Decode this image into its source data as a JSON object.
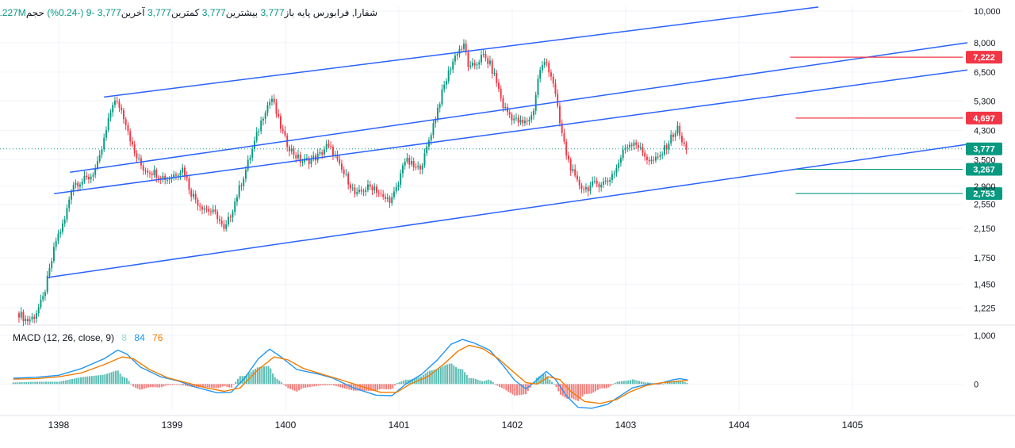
{
  "header": {
    "symbol": "شفارا, فرابورس پایه",
    "open_label": "باز",
    "open_value": "3,777",
    "high_label": "بیشترین",
    "high_value": "3,777",
    "low_label": "کمترین",
    "low_value": "3,777",
    "close_label": "آخرین",
    "close_value": "3,777",
    "change": "-9",
    "change_pct": "(-0.24%)",
    "volume_label": "حجم",
    "volume_value": "1.227M"
  },
  "macd_legend": {
    "title": "MACD (12, 26, close, 9)",
    "hist_value": "8",
    "macd_value": "84",
    "signal_value": "76"
  },
  "colors": {
    "up": "#089981",
    "down": "#f23645",
    "channel": "#2962ff",
    "macd": "#2196f3",
    "signal": "#f57c00",
    "hist_up": "#26a69a",
    "hist_down": "#ef5350"
  },
  "chart_data": [
    {
      "type": "candlestick",
      "scale": "log",
      "x_ticks": [
        "1398",
        "1399",
        "1400",
        "1401",
        "1402",
        "1403",
        "1404",
        "1405"
      ],
      "x_range": [
        1397.6,
        1405.8
      ],
      "y_ticks": [
        10000,
        8000,
        6500,
        5300,
        4300,
        3500,
        2900,
        2550,
        2150,
        1750,
        1450,
        1225
      ],
      "y_tick_labels": [
        "10,000",
        "8,000",
        "6,500",
        "5,300",
        "4,300",
        "3,500",
        "2,900",
        "2,550",
        "2,150",
        "1,750",
        "1,450",
        "1,225"
      ],
      "ylim": [
        1110,
        10350
      ],
      "price_path": [
        [
          1397.65,
          1180
        ],
        [
          1397.72,
          1120
        ],
        [
          1397.78,
          1150
        ],
        [
          1397.86,
          1300
        ],
        [
          1397.92,
          1600
        ],
        [
          1397.98,
          2000
        ],
        [
          1398.05,
          2250
        ],
        [
          1398.12,
          2950
        ],
        [
          1398.2,
          3000
        ],
        [
          1398.28,
          3100
        ],
        [
          1398.35,
          3400
        ],
        [
          1398.42,
          4300
        ],
        [
          1398.48,
          5300
        ],
        [
          1398.54,
          5100
        ],
        [
          1398.6,
          4500
        ],
        [
          1398.66,
          3700
        ],
        [
          1398.74,
          3300
        ],
        [
          1398.84,
          3200
        ],
        [
          1398.96,
          3050
        ],
        [
          1399.04,
          3200
        ],
        [
          1399.1,
          3300
        ],
        [
          1399.16,
          2800
        ],
        [
          1399.24,
          2550
        ],
        [
          1399.32,
          2450
        ],
        [
          1399.4,
          2350
        ],
        [
          1399.46,
          2100
        ],
        [
          1399.52,
          2400
        ],
        [
          1399.6,
          2900
        ],
        [
          1399.68,
          3500
        ],
        [
          1399.76,
          4300
        ],
        [
          1399.82,
          5000
        ],
        [
          1399.88,
          5400
        ],
        [
          1399.94,
          4600
        ],
        [
          1400.0,
          4000
        ],
        [
          1400.06,
          3700
        ],
        [
          1400.14,
          3450
        ],
        [
          1400.22,
          3500
        ],
        [
          1400.3,
          3600
        ],
        [
          1400.36,
          3850
        ],
        [
          1400.42,
          3700
        ],
        [
          1400.48,
          3300
        ],
        [
          1400.56,
          3000
        ],
        [
          1400.62,
          2700
        ],
        [
          1400.7,
          2850
        ],
        [
          1400.78,
          2900
        ],
        [
          1400.86,
          2650
        ],
        [
          1400.94,
          2650
        ],
        [
          1401.0,
          2950
        ],
        [
          1401.04,
          3500
        ],
        [
          1401.1,
          3400
        ],
        [
          1401.16,
          3250
        ],
        [
          1401.22,
          3500
        ],
        [
          1401.28,
          4200
        ],
        [
          1401.34,
          5000
        ],
        [
          1401.4,
          5900
        ],
        [
          1401.46,
          6800
        ],
        [
          1401.52,
          7600
        ],
        [
          1401.58,
          7800
        ],
        [
          1401.62,
          6600
        ],
        [
          1401.68,
          6900
        ],
        [
          1401.74,
          7300
        ],
        [
          1401.8,
          6900
        ],
        [
          1401.86,
          6100
        ],
        [
          1401.92,
          5100
        ],
        [
          1401.98,
          4800
        ],
        [
          1402.04,
          4600
        ],
        [
          1402.1,
          4500
        ],
        [
          1402.18,
          4800
        ],
        [
          1402.24,
          6600
        ],
        [
          1402.3,
          7000
        ],
        [
          1402.36,
          6100
        ],
        [
          1402.42,
          4500
        ],
        [
          1402.48,
          3600
        ],
        [
          1402.56,
          3000
        ],
        [
          1402.64,
          2850
        ],
        [
          1402.74,
          2950
        ],
        [
          1402.84,
          3000
        ],
        [
          1402.92,
          3300
        ],
        [
          1403.0,
          3850
        ],
        [
          1403.08,
          4000
        ],
        [
          1403.14,
          3700
        ],
        [
          1403.22,
          3450
        ],
        [
          1403.28,
          3500
        ],
        [
          1403.34,
          3750
        ],
        [
          1403.42,
          4200
        ],
        [
          1403.46,
          4350
        ],
        [
          1403.5,
          3900
        ],
        [
          1403.55,
          3777
        ]
      ],
      "channel_lines": [
        {
          "from": [
            1398.4,
            5450
          ],
          "to": [
            1404.7,
            10300
          ]
        },
        {
          "from": [
            1398.1,
            3200
          ],
          "to": [
            1406.9,
            8000
          ]
        },
        {
          "from": [
            1397.96,
            2750
          ],
          "to": [
            1406.9,
            6600
          ]
        },
        {
          "from": [
            1397.9,
            1520
          ],
          "to": [
            1406.9,
            3900
          ]
        }
      ],
      "levels": [
        {
          "value": 7222,
          "label": "7,222",
          "color": "#f23645",
          "from": 1404.45
        },
        {
          "value": 4697,
          "label": "4,697",
          "color": "#f23645",
          "from": 1404.5
        },
        {
          "value": 3267,
          "label": "3,267",
          "color": "#089981",
          "from": 1404.5
        },
        {
          "value": 2753,
          "label": "2,753",
          "color": "#089981",
          "from": 1404.5
        }
      ],
      "last_price": {
        "value": 3777,
        "label": "3,777",
        "color": "#089981"
      }
    },
    {
      "type": "line",
      "title": "MACD (12, 26, close, 9)",
      "y_ticks": [
        1000,
        0
      ],
      "y_tick_labels": [
        "1,000",
        "0"
      ],
      "ylim": [
        -550,
        1150
      ],
      "macd": [
        [
          1397.6,
          120
        ],
        [
          1397.8,
          140
        ],
        [
          1398.0,
          180
        ],
        [
          1398.2,
          320
        ],
        [
          1398.4,
          520
        ],
        [
          1398.52,
          700
        ],
        [
          1398.6,
          620
        ],
        [
          1398.72,
          350
        ],
        [
          1398.9,
          150
        ],
        [
          1399.06,
          60
        ],
        [
          1399.2,
          -60
        ],
        [
          1399.4,
          -180
        ],
        [
          1399.52,
          -170
        ],
        [
          1399.64,
          120
        ],
        [
          1399.76,
          520
        ],
        [
          1399.86,
          720
        ],
        [
          1399.96,
          560
        ],
        [
          1400.1,
          300
        ],
        [
          1400.3,
          200
        ],
        [
          1400.42,
          120
        ],
        [
          1400.6,
          -80
        ],
        [
          1400.8,
          -230
        ],
        [
          1400.94,
          -240
        ],
        [
          1401.06,
          0
        ],
        [
          1401.2,
          200
        ],
        [
          1401.34,
          500
        ],
        [
          1401.46,
          820
        ],
        [
          1401.56,
          920
        ],
        [
          1401.66,
          850
        ],
        [
          1401.8,
          700
        ],
        [
          1401.92,
          380
        ],
        [
          1402.02,
          80
        ],
        [
          1402.12,
          -100
        ],
        [
          1402.2,
          50
        ],
        [
          1402.3,
          260
        ],
        [
          1402.38,
          100
        ],
        [
          1402.48,
          -250
        ],
        [
          1402.58,
          -480
        ],
        [
          1402.7,
          -500
        ],
        [
          1402.84,
          -420
        ],
        [
          1402.94,
          -260
        ],
        [
          1403.06,
          -80
        ],
        [
          1403.2,
          0
        ],
        [
          1403.3,
          10
        ],
        [
          1403.42,
          90
        ],
        [
          1403.48,
          110
        ],
        [
          1403.55,
          84
        ]
      ],
      "signal": [
        [
          1397.6,
          100
        ],
        [
          1397.8,
          110
        ],
        [
          1398.0,
          150
        ],
        [
          1398.2,
          230
        ],
        [
          1398.4,
          400
        ],
        [
          1398.56,
          560
        ],
        [
          1398.66,
          520
        ],
        [
          1398.8,
          300
        ],
        [
          1398.96,
          130
        ],
        [
          1399.14,
          20
        ],
        [
          1399.3,
          -80
        ],
        [
          1399.46,
          -150
        ],
        [
          1399.6,
          -80
        ],
        [
          1399.76,
          300
        ],
        [
          1399.9,
          560
        ],
        [
          1400.02,
          500
        ],
        [
          1400.16,
          320
        ],
        [
          1400.34,
          190
        ],
        [
          1400.5,
          80
        ],
        [
          1400.66,
          -40
        ],
        [
          1400.84,
          -170
        ],
        [
          1400.98,
          -170
        ],
        [
          1401.1,
          0
        ],
        [
          1401.26,
          160
        ],
        [
          1401.4,
          420
        ],
        [
          1401.52,
          680
        ],
        [
          1401.62,
          800
        ],
        [
          1401.74,
          730
        ],
        [
          1401.88,
          520
        ],
        [
          1402.0,
          270
        ],
        [
          1402.12,
          30
        ],
        [
          1402.22,
          0
        ],
        [
          1402.32,
          150
        ],
        [
          1402.42,
          90
        ],
        [
          1402.52,
          -160
        ],
        [
          1402.64,
          -360
        ],
        [
          1402.78,
          -400
        ],
        [
          1402.92,
          -320
        ],
        [
          1403.04,
          -160
        ],
        [
          1403.18,
          -30
        ],
        [
          1403.3,
          20
        ],
        [
          1403.42,
          50
        ],
        [
          1403.55,
          76
        ]
      ],
      "hist_range": [
        1397.6,
        1403.55
      ],
      "x_ticks": [
        "1398",
        "1399",
        "1400",
        "1401",
        "1402",
        "1403",
        "1404",
        "1405"
      ]
    }
  ]
}
